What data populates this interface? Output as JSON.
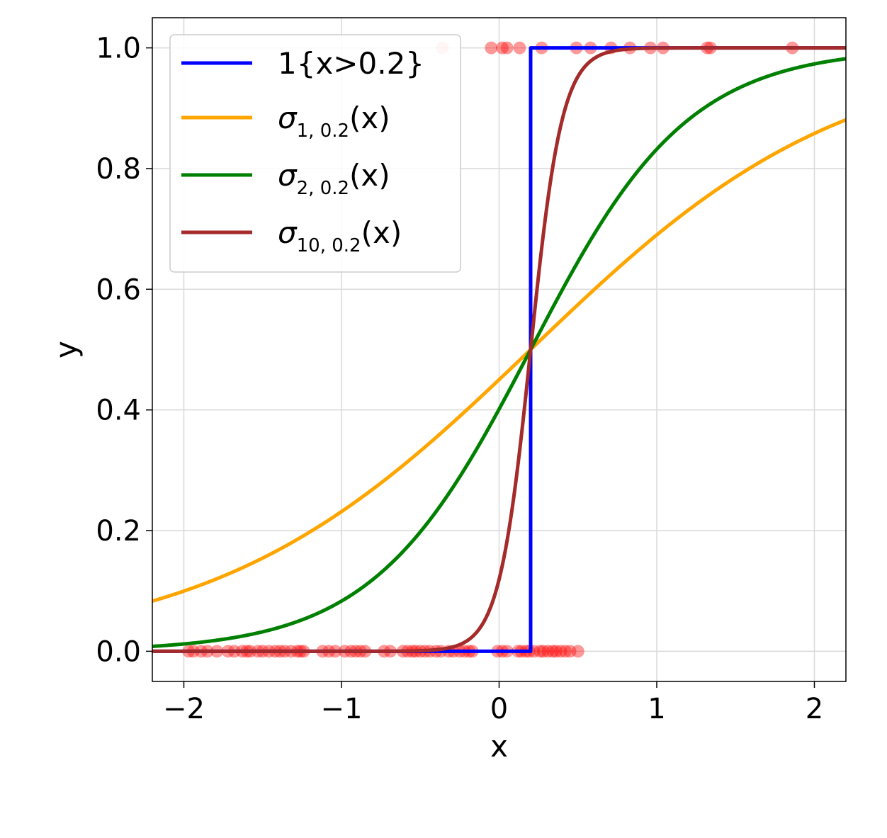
{
  "chart_data": {
    "type": "line",
    "xlabel": "x",
    "ylabel": "y",
    "xlim": [
      -2.2,
      2.2
    ],
    "ylim": [
      -0.05,
      1.05
    ],
    "x_ticks": [
      -2,
      -1,
      0,
      1,
      2
    ],
    "x_tick_labels": [
      "−2",
      "−1",
      "0",
      "1",
      "2"
    ],
    "y_ticks": [
      0.0,
      0.2,
      0.4,
      0.6,
      0.8,
      1.0
    ],
    "y_tick_labels": [
      "0.0",
      "0.2",
      "0.4",
      "0.6",
      "0.8",
      "1.0"
    ],
    "grid": true,
    "legend_position": "top-left",
    "series": [
      {
        "name": "1{x>0.2}",
        "kind": "step",
        "threshold": 0.2,
        "color": "#0000ff"
      },
      {
        "name": "σ",
        "subscript": "1, 0.2",
        "suffix": "(x)",
        "kind": "sigmoid",
        "k": 1,
        "c": 0.2,
        "color": "#ffa500"
      },
      {
        "name": "σ",
        "subscript": "2, 0.2",
        "suffix": "(x)",
        "kind": "sigmoid",
        "k": 2,
        "c": 0.2,
        "color": "#008000"
      },
      {
        "name": "σ",
        "subscript": "10, 0.2",
        "suffix": "(x)",
        "kind": "sigmoid",
        "k": 10,
        "c": 0.2,
        "color": "#a52a2a"
      }
    ],
    "scatter": {
      "color": "#ff0000",
      "opacity": 0.4,
      "points_y0": [
        -1.97,
        -1.94,
        -1.89,
        -1.85,
        -1.79,
        -1.72,
        -1.68,
        -1.63,
        -1.6,
        -1.58,
        -1.53,
        -1.5,
        -1.46,
        -1.42,
        -1.39,
        -1.36,
        -1.32,
        -1.28,
        -1.26,
        -1.24,
        -1.12,
        -1.08,
        -1.04,
        -0.98,
        -0.94,
        -0.91,
        -0.88,
        -0.85,
        -0.73,
        -0.69,
        -0.61,
        -0.58,
        -0.55,
        -0.53,
        -0.5,
        -0.47,
        -0.44,
        -0.4,
        -0.37,
        -0.32,
        -0.29,
        -0.25,
        -0.22,
        -0.19,
        -0.17,
        -0.01,
        0.02,
        0.05,
        0.12,
        0.14,
        0.17,
        0.19,
        0.22,
        0.26,
        0.28,
        0.31,
        0.34,
        0.36,
        0.39,
        0.42,
        0.45,
        0.5
      ],
      "points_y1": [
        -0.36,
        -0.05,
        0.02,
        0.05,
        0.13,
        0.27,
        0.49,
        0.58,
        0.71,
        0.83,
        0.96,
        1.04,
        1.32,
        1.34,
        1.86
      ]
    }
  }
}
